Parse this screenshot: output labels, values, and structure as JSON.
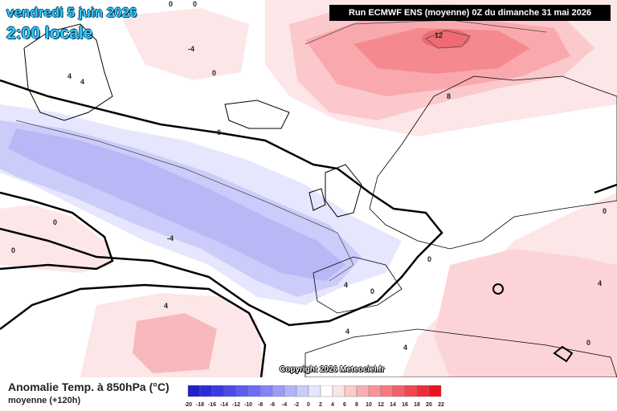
{
  "header": {
    "date_label": "vendredi 5 juin 2026",
    "time_label": "2:00 locale",
    "run_label": "Run ECMWF ENS (moyenne) 0Z du dimanche 31 mai 2026"
  },
  "map": {
    "contour_labels": [
      {
        "id": "a",
        "text": "0"
      },
      {
        "id": "b",
        "text": "0"
      },
      {
        "id": "c",
        "text": "-4"
      },
      {
        "id": "d",
        "text": "4"
      },
      {
        "id": "e",
        "text": "4"
      },
      {
        "id": "f",
        "text": "0"
      },
      {
        "id": "g",
        "text": "0"
      },
      {
        "id": "h",
        "text": "12"
      },
      {
        "id": "i",
        "text": "8"
      },
      {
        "id": "j",
        "text": "0"
      },
      {
        "id": "k",
        "text": "-4"
      },
      {
        "id": "l",
        "text": "0"
      },
      {
        "id": "m",
        "text": "4"
      },
      {
        "id": "n",
        "text": "4"
      },
      {
        "id": "o",
        "text": "4"
      },
      {
        "id": "p",
        "text": "4"
      },
      {
        "id": "q",
        "text": "0"
      },
      {
        "id": "r",
        "text": "4"
      },
      {
        "id": "s",
        "text": "0"
      },
      {
        "id": "t",
        "text": "0"
      },
      {
        "id": "u",
        "text": "0"
      }
    ]
  },
  "copyright": "Copyright 2026 Meteociel.fr",
  "footer": {
    "variable_label": "Anomalie Temp. à 850hPa (°C)",
    "mean_label": "moyenne   (+120h)"
  },
  "scale": {
    "values": [
      "-20",
      "-18",
      "-16",
      "-14",
      "-12",
      "-10",
      "-8",
      "-6",
      "-4",
      "-2",
      "0",
      "2",
      "4",
      "6",
      "8",
      "10",
      "12",
      "14",
      "16",
      "18",
      "20",
      "22"
    ],
    "colors": [
      "#2020c8",
      "#2c2cd8",
      "#3a3ae4",
      "#4a4aec",
      "#5c5cf0",
      "#6e6ef4",
      "#8484f6",
      "#9c9cf8",
      "#b4b4fa",
      "#ccccfc",
      "#e6e6fe",
      "#ffffff",
      "#fde4e6",
      "#fccacc",
      "#faaeb2",
      "#f89498",
      "#f67a80",
      "#f46068",
      "#f24650",
      "#f02c38",
      "#ee1220"
    ]
  }
}
